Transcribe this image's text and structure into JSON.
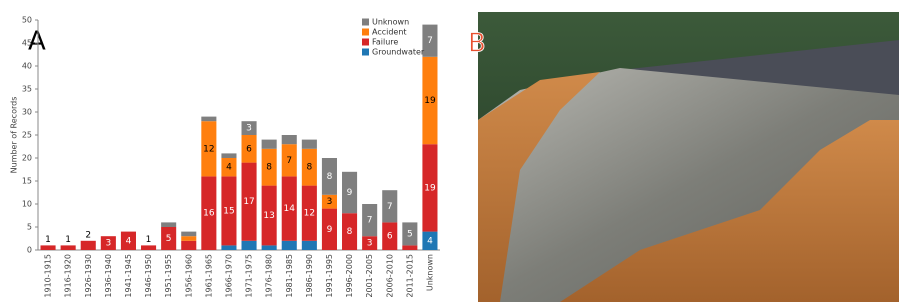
{
  "chart_data": {
    "type": "stacked_bar",
    "y_label": "Number of Records",
    "categories": [
      "1910-1915",
      "1916-1920",
      "1926-1930",
      "1936-1940",
      "1941-1945",
      "1946-1950",
      "1951-1955",
      "1956-1960",
      "1961-1965",
      "1966-1970",
      "1971-1975",
      "1976-1980",
      "1981-1985",
      "1986-1990",
      "1991-1995",
      "1996-2000",
      "2001-2005",
      "2006-2010",
      "2011-2015",
      "Unknown"
    ],
    "series": [
      {
        "name": "Groundwater",
        "color": "#1f77b4",
        "values": [
          0,
          0,
          0,
          0,
          0,
          0,
          0,
          0,
          0,
          1,
          2,
          1,
          2,
          2,
          0,
          0,
          0,
          0,
          0,
          4
        ]
      },
      {
        "name": "Failure",
        "color": "#d62728",
        "values": [
          1,
          1,
          2,
          3,
          4,
          1,
          5,
          2,
          16,
          15,
          17,
          13,
          14,
          12,
          9,
          8,
          3,
          6,
          1,
          19
        ]
      },
      {
        "name": "Accident",
        "color": "#ff7f0e",
        "values": [
          0,
          0,
          0,
          0,
          0,
          0,
          0,
          1,
          12,
          4,
          6,
          8,
          7,
          8,
          3,
          0,
          0,
          0,
          0,
          19
        ]
      },
      {
        "name": "Unknown",
        "color": "#7f7f7f",
        "values": [
          0,
          0,
          0,
          0,
          0,
          0,
          1,
          1,
          1,
          1,
          3,
          2,
          2,
          2,
          8,
          9,
          7,
          7,
          5,
          7
        ]
      }
    ],
    "ylim": [
      0,
      50
    ],
    "yticks": [
      0,
      5,
      10,
      15,
      20,
      25,
      30,
      35,
      40,
      45,
      50
    ],
    "legend": "top-right"
  },
  "panel_labels": {
    "a": "A",
    "b": "B"
  }
}
